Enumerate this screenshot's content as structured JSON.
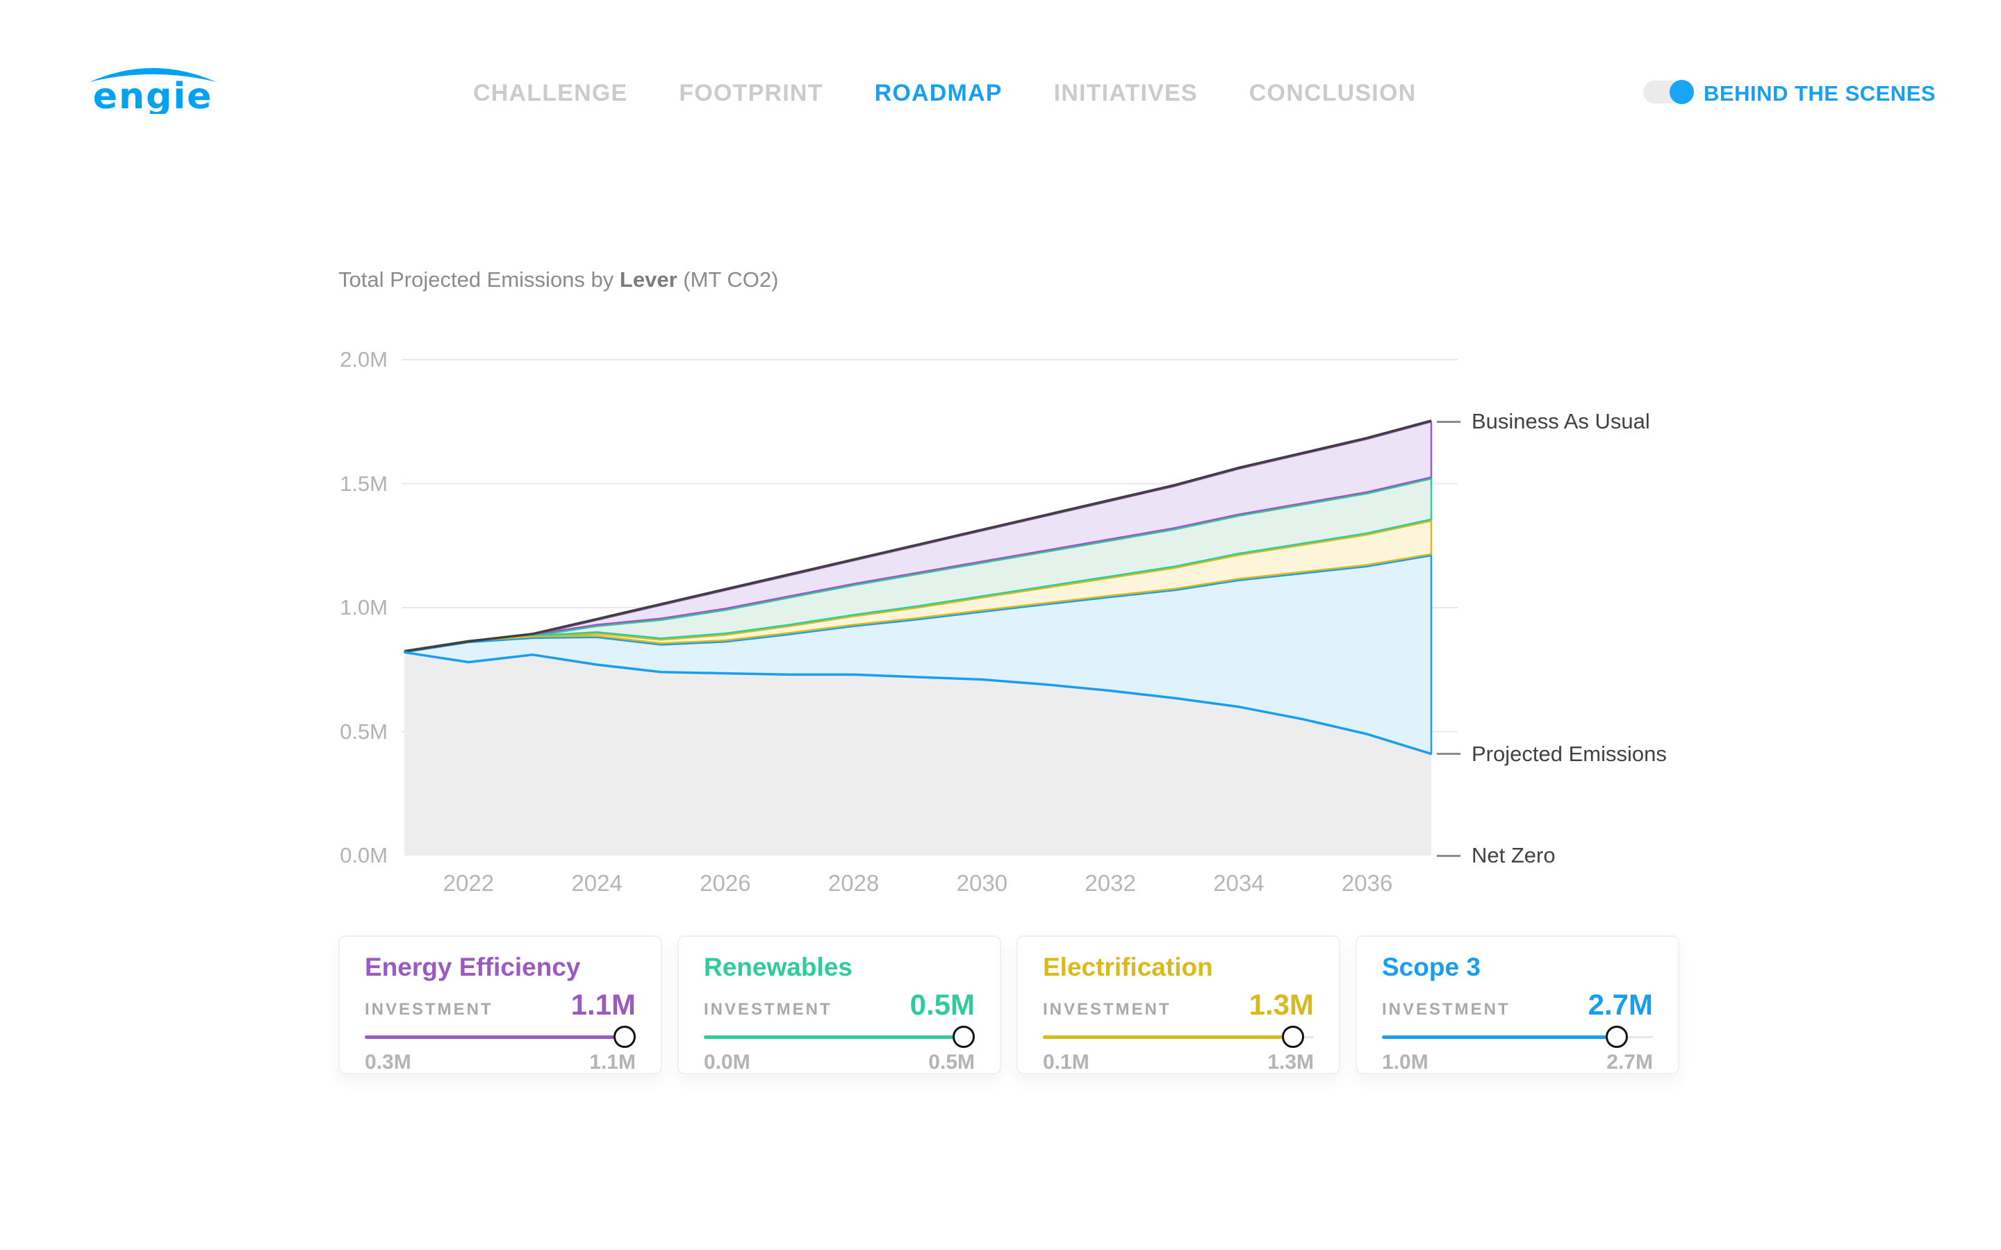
{
  "brand": {
    "name": "engie",
    "color": "#00a2f2"
  },
  "nav": {
    "items": [
      {
        "label": "CHALLENGE",
        "active": false
      },
      {
        "label": "FOOTPRINT",
        "active": false
      },
      {
        "label": "ROADMAP",
        "active": true
      },
      {
        "label": "INITIATIVES",
        "active": false
      },
      {
        "label": "CONCLUSION",
        "active": false
      }
    ],
    "active_color": "#18a0f0",
    "inactive_color": "#cbcbcb"
  },
  "toggle": {
    "label": "BEHIND THE SCENES",
    "state": "on",
    "color": "#18a5f5"
  },
  "chart": {
    "title_regular_1": "Total Projected Emissions by ",
    "title_bold": "Lever",
    "title_regular_2": " (MT CO2)"
  },
  "chart_data": {
    "type": "area",
    "title": "Total Projected Emissions by Lever (MT CO2)",
    "unit": "MT CO2",
    "x": [
      2021,
      2022,
      2023,
      2024,
      2025,
      2026,
      2027,
      2028,
      2029,
      2030,
      2031,
      2032,
      2033,
      2034,
      2035,
      2036,
      2037
    ],
    "xticks": [
      "2022",
      "2024",
      "2026",
      "2028",
      "2030",
      "2032",
      "2034",
      "2036"
    ],
    "yticks": [
      {
        "label": "0.0M",
        "value": 0
      },
      {
        "label": "0.5M",
        "value": 0.5
      },
      {
        "label": "1.0M",
        "value": 1
      },
      {
        "label": "1.5M",
        "value": 1.5
      },
      {
        "label": "2.0M",
        "value": 2
      }
    ],
    "ylim": [
      0,
      2
    ],
    "grid_color": "#e9e9e9",
    "remaining_fill": "#ededee",
    "bau": {
      "name": "Business As Usual",
      "color": "#3f3f3f",
      "values": [
        0.82,
        0.86,
        0.89,
        0.95,
        1.01,
        1.07,
        1.13,
        1.19,
        1.25,
        1.31,
        1.37,
        1.43,
        1.49,
        1.56,
        1.62,
        1.68,
        1.75
      ]
    },
    "levers": [
      {
        "name": "Energy Efficiency",
        "color": "#9b59c2",
        "fill": "#ece4f6",
        "reduction": [
          0,
          0,
          0.005,
          0.025,
          0.06,
          0.08,
          0.09,
          0.1,
          0.115,
          0.13,
          0.145,
          0.16,
          0.175,
          0.19,
          0.205,
          0.22,
          0.23
        ]
      },
      {
        "name": "Renewables",
        "color": "#2ecc9c",
        "fill": "#e3f3eb",
        "reduction": [
          0,
          0,
          0.005,
          0.03,
          0.08,
          0.1,
          0.115,
          0.125,
          0.135,
          0.14,
          0.145,
          0.15,
          0.155,
          0.158,
          0.162,
          0.166,
          0.17
        ]
      },
      {
        "name": "Electrification",
        "color": "#d9ba1c",
        "fill": "#fcf5da",
        "reduction": [
          0,
          0,
          0.003,
          0.015,
          0.02,
          0.028,
          0.033,
          0.04,
          0.048,
          0.057,
          0.067,
          0.078,
          0.09,
          0.102,
          0.115,
          0.128,
          0.14
        ]
      },
      {
        "name": "Scope 3",
        "color": "#189df2",
        "fill": "#e0f2fc"
      }
    ],
    "projected": {
      "name": "Projected Emissions",
      "color": "#189df2",
      "values": [
        0.82,
        0.78,
        0.81,
        0.77,
        0.74,
        0.735,
        0.73,
        0.73,
        0.72,
        0.71,
        0.69,
        0.665,
        0.635,
        0.6,
        0.55,
        0.49,
        0.41
      ]
    },
    "annotations": [
      {
        "label": "Business As Usual",
        "anchor": "bau"
      },
      {
        "label": "Projected Emissions",
        "anchor": "projected"
      },
      {
        "label": "Net Zero",
        "anchor": "zero"
      }
    ]
  },
  "levers": [
    {
      "name": "Energy Efficiency",
      "color": "#9b59c2",
      "investment_label": "INVESTMENT",
      "value": "1.1M",
      "min": "0.3M",
      "max": "1.1M",
      "slider_pct": 100
    },
    {
      "name": "Renewables",
      "color": "#2ecc9c",
      "investment_label": "INVESTMENT",
      "value": "0.5M",
      "min": "0.0M",
      "max": "0.5M",
      "slider_pct": 100
    },
    {
      "name": "Electrification",
      "color": "#d9ba1c",
      "investment_label": "INVESTMENT",
      "value": "1.3M",
      "min": "0.1M",
      "max": "1.3M",
      "slider_pct": 96
    },
    {
      "name": "Scope 3",
      "color": "#189df2",
      "investment_label": "INVESTMENT",
      "value": "2.7M",
      "min": "1.0M",
      "max": "2.7M",
      "slider_pct": 90
    }
  ]
}
